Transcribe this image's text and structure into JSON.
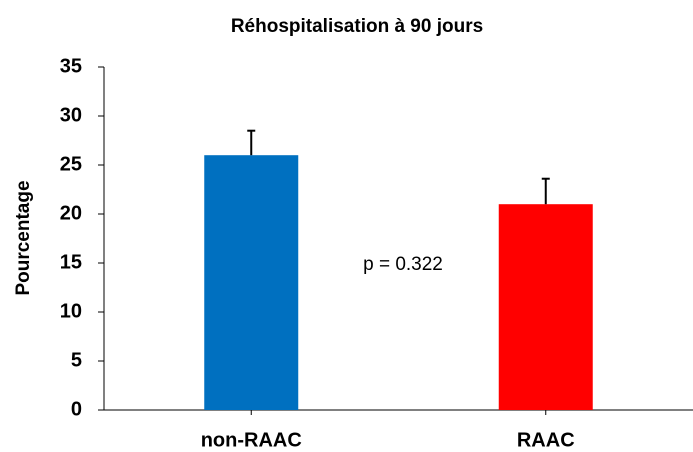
{
  "chart_data": {
    "type": "bar",
    "title": "Réhospitalisation à 90 jours",
    "y_label": "Pourcentage",
    "categories": [
      "non-RAAC",
      "RAAC"
    ],
    "values": [
      26,
      21
    ],
    "errors": [
      2.5,
      2.6
    ],
    "colors": [
      "#0070c0",
      "#ff0000"
    ],
    "annotation": "p = 0.322",
    "ylim": [
      0,
      35
    ],
    "yticks": [
      0,
      5,
      10,
      15,
      20,
      25,
      30,
      35
    ],
    "grid": false
  }
}
